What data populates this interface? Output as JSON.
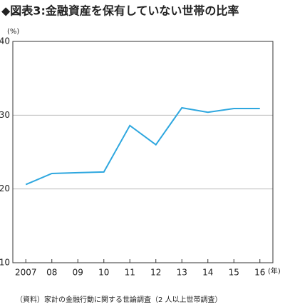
{
  "chart_data": {
    "type": "line",
    "title": "◆図表3:金融資産を保有していない世帯の比率",
    "y_unit": "(%)",
    "x_unit": "(年)",
    "categories": [
      "2007",
      "08",
      "09",
      "10",
      "11",
      "12",
      "13",
      "14",
      "15",
      "16"
    ],
    "series": [
      {
        "name": "金融資産を保有していない世帯の比率",
        "color": "#2ea7df",
        "values": [
          20.6,
          22.1,
          22.2,
          22.3,
          28.6,
          26.0,
          31.0,
          30.4,
          30.9,
          30.9
        ]
      }
    ],
    "ylim": [
      10,
      40
    ],
    "yticks": [
      10,
      20,
      30,
      40
    ],
    "grid": true,
    "note": "（資料）家計の金融行動に関する世論調査（2 人以上世帯調査）"
  }
}
